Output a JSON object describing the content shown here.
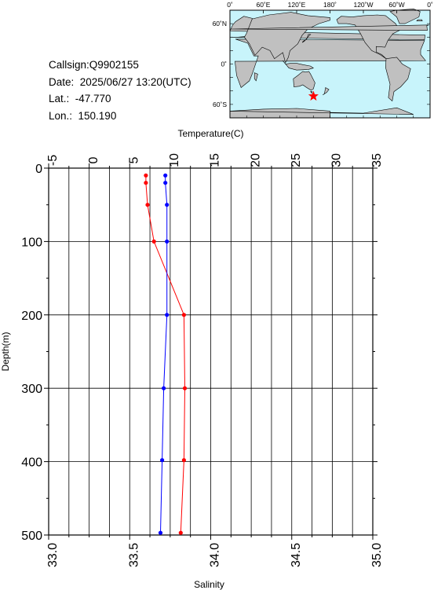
{
  "info": {
    "callsign": "Callsign:Q9902155",
    "date": "Date:  2025/06/27 13:20(UTC)",
    "lat": "Lat.:  -47.770",
    "lon": "Lon.:  150.190"
  },
  "map": {
    "top_labels": [
      "0˚",
      "60˚E",
      "120˚E",
      "180˚",
      "120˚W",
      "60˚W",
      "0˚"
    ],
    "lat_labels": [
      "60˚N",
      "0˚",
      "60˚S"
    ],
    "marker": {
      "lat": -47.77,
      "lon": 150.19
    },
    "ocean_color": "#c8f4fb",
    "land_color": "#c0c0c0",
    "marker_color": "#ff0000"
  },
  "chart_data": {
    "type": "line",
    "title": "",
    "xlabel_top": "Temperature(C)",
    "xlabel_bottom": "Salinity",
    "ylabel": "Depth(m)",
    "temperature_range": [
      -5,
      35
    ],
    "temperature_ticks": [
      "-5",
      "0",
      "5",
      "10",
      "15",
      "20",
      "25",
      "30",
      "35"
    ],
    "salinity_range": [
      33.0,
      35.0
    ],
    "salinity_ticks": [
      "33.0",
      "33.5",
      "34.0",
      "34.5",
      "35.0"
    ],
    "depth_range": [
      0,
      500
    ],
    "depth_ticks": [
      "0",
      "100",
      "200",
      "300",
      "400",
      "500"
    ],
    "grid": true,
    "series": [
      {
        "name": "Temperature",
        "axis": "top",
        "color": "#ff0000",
        "depth": [
          10,
          20,
          50,
          100,
          200,
          300,
          398,
          497
        ],
        "values": [
          7.0,
          7.0,
          7.2,
          8.0,
          11.7,
          11.8,
          11.7,
          11.3
        ]
      },
      {
        "name": "Salinity",
        "axis": "bottom",
        "color": "#0000ff",
        "depth": [
          10,
          20,
          50,
          100,
          200,
          300,
          398,
          497
        ],
        "values": [
          33.72,
          33.72,
          33.73,
          33.73,
          33.73,
          33.71,
          33.7,
          33.69
        ]
      }
    ]
  }
}
